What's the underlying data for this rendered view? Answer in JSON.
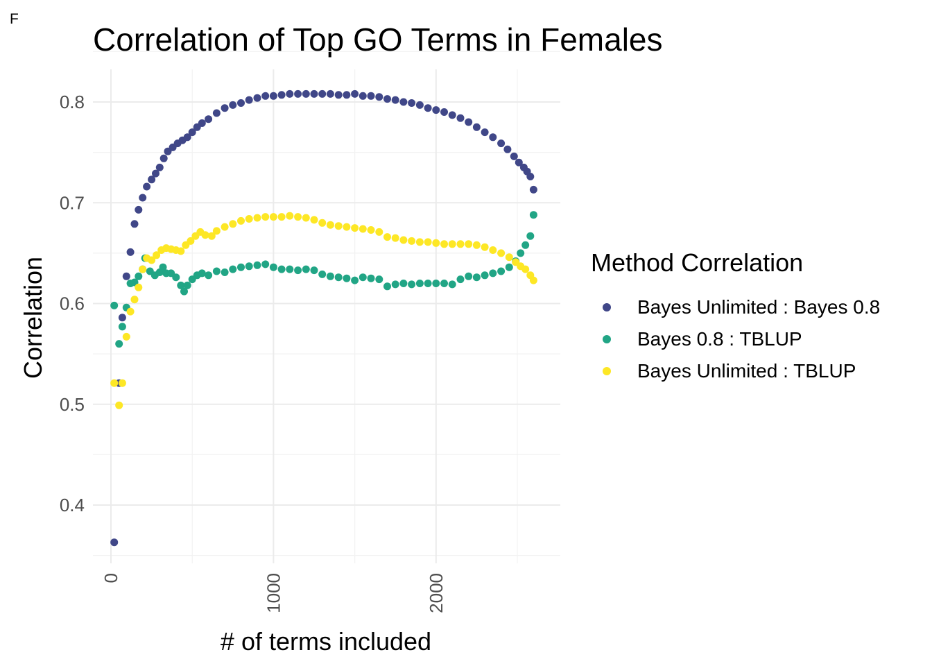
{
  "figure": {
    "panel_tag": "F"
  },
  "chart_data": {
    "type": "scatter",
    "title": "Correlation of Top GO Terms in Females",
    "xlabel": "# of terms included",
    "ylabel": "Correlation",
    "xlim": [
      -100,
      2750
    ],
    "ylim": [
      0.346,
      0.832
    ],
    "x_ticks": [
      0,
      1000,
      2000
    ],
    "x_tick_labels": [
      "0",
      "1000",
      "2000"
    ],
    "y_ticks": [
      0.4,
      0.5,
      0.6,
      0.7,
      0.8
    ],
    "y_tick_labels": [
      "0.4",
      "0.5",
      "0.6",
      "0.7",
      "0.8"
    ],
    "grid": true,
    "legend": {
      "title": "Method Correlation",
      "position": "right"
    },
    "series": [
      {
        "name": "Bayes Unlimited : Bayes 0.8",
        "color": "#404788",
        "points": [
          [
            20,
            0.363
          ],
          [
            50,
            0.521
          ],
          [
            70,
            0.586
          ],
          [
            95,
            0.627
          ],
          [
            120,
            0.651
          ],
          [
            145,
            0.679
          ],
          [
            170,
            0.693
          ],
          [
            195,
            0.705
          ],
          [
            220,
            0.716
          ],
          [
            250,
            0.723
          ],
          [
            275,
            0.729
          ],
          [
            300,
            0.735
          ],
          [
            325,
            0.744
          ],
          [
            350,
            0.751
          ],
          [
            380,
            0.755
          ],
          [
            410,
            0.759
          ],
          [
            440,
            0.762
          ],
          [
            470,
            0.765
          ],
          [
            500,
            0.77
          ],
          [
            530,
            0.775
          ],
          [
            560,
            0.779
          ],
          [
            600,
            0.783
          ],
          [
            650,
            0.789
          ],
          [
            700,
            0.794
          ],
          [
            750,
            0.797
          ],
          [
            800,
            0.799
          ],
          [
            850,
            0.802
          ],
          [
            900,
            0.804
          ],
          [
            950,
            0.806
          ],
          [
            1000,
            0.806
          ],
          [
            1050,
            0.807
          ],
          [
            1100,
            0.808
          ],
          [
            1150,
            0.808
          ],
          [
            1200,
            0.808
          ],
          [
            1250,
            0.808
          ],
          [
            1300,
            0.808
          ],
          [
            1350,
            0.808
          ],
          [
            1400,
            0.807
          ],
          [
            1450,
            0.807
          ],
          [
            1500,
            0.808
          ],
          [
            1550,
            0.806
          ],
          [
            1600,
            0.806
          ],
          [
            1650,
            0.805
          ],
          [
            1700,
            0.803
          ],
          [
            1750,
            0.802
          ],
          [
            1800,
            0.8
          ],
          [
            1850,
            0.799
          ],
          [
            1900,
            0.797
          ],
          [
            1950,
            0.794
          ],
          [
            2000,
            0.792
          ],
          [
            2050,
            0.79
          ],
          [
            2100,
            0.787
          ],
          [
            2150,
            0.784
          ],
          [
            2200,
            0.78
          ],
          [
            2250,
            0.775
          ],
          [
            2300,
            0.77
          ],
          [
            2350,
            0.765
          ],
          [
            2400,
            0.759
          ],
          [
            2440,
            0.753
          ],
          [
            2480,
            0.746
          ],
          [
            2510,
            0.74
          ],
          [
            2540,
            0.735
          ],
          [
            2560,
            0.731
          ],
          [
            2580,
            0.726
          ],
          [
            2600,
            0.713
          ]
        ]
      },
      {
        "name": "Bayes 0.8 : TBLUP",
        "color": "#21A585",
        "points": [
          [
            20,
            0.598
          ],
          [
            50,
            0.56
          ],
          [
            70,
            0.577
          ],
          [
            95,
            0.596
          ],
          [
            120,
            0.62
          ],
          [
            145,
            0.621
          ],
          [
            170,
            0.627
          ],
          [
            195,
            0.634
          ],
          [
            210,
            0.645
          ],
          [
            240,
            0.632
          ],
          [
            270,
            0.628
          ],
          [
            300,
            0.631
          ],
          [
            320,
            0.636
          ],
          [
            340,
            0.63
          ],
          [
            370,
            0.63
          ],
          [
            400,
            0.626
          ],
          [
            430,
            0.618
          ],
          [
            450,
            0.612
          ],
          [
            470,
            0.618
          ],
          [
            500,
            0.624
          ],
          [
            530,
            0.628
          ],
          [
            560,
            0.63
          ],
          [
            600,
            0.628
          ],
          [
            650,
            0.632
          ],
          [
            700,
            0.631
          ],
          [
            750,
            0.634
          ],
          [
            800,
            0.636
          ],
          [
            850,
            0.637
          ],
          [
            900,
            0.638
          ],
          [
            950,
            0.639
          ],
          [
            1000,
            0.636
          ],
          [
            1050,
            0.634
          ],
          [
            1100,
            0.634
          ],
          [
            1150,
            0.633
          ],
          [
            1200,
            0.634
          ],
          [
            1250,
            0.633
          ],
          [
            1300,
            0.629
          ],
          [
            1350,
            0.627
          ],
          [
            1400,
            0.626
          ],
          [
            1450,
            0.625
          ],
          [
            1500,
            0.623
          ],
          [
            1550,
            0.626
          ],
          [
            1600,
            0.625
          ],
          [
            1650,
            0.624
          ],
          [
            1700,
            0.617
          ],
          [
            1750,
            0.619
          ],
          [
            1800,
            0.62
          ],
          [
            1850,
            0.619
          ],
          [
            1900,
            0.62
          ],
          [
            1950,
            0.62
          ],
          [
            2000,
            0.62
          ],
          [
            2050,
            0.62
          ],
          [
            2100,
            0.619
          ],
          [
            2150,
            0.624
          ],
          [
            2200,
            0.627
          ],
          [
            2250,
            0.626
          ],
          [
            2300,
            0.628
          ],
          [
            2350,
            0.63
          ],
          [
            2400,
            0.632
          ],
          [
            2450,
            0.636
          ],
          [
            2490,
            0.642
          ],
          [
            2520,
            0.65
          ],
          [
            2550,
            0.658
          ],
          [
            2580,
            0.667
          ],
          [
            2600,
            0.688
          ]
        ]
      },
      {
        "name": "Bayes Unlimited : TBLUP",
        "color": "#FDE725",
        "points": [
          [
            20,
            0.521
          ],
          [
            50,
            0.499
          ],
          [
            70,
            0.521
          ],
          [
            95,
            0.567
          ],
          [
            120,
            0.592
          ],
          [
            145,
            0.604
          ],
          [
            170,
            0.616
          ],
          [
            195,
            0.634
          ],
          [
            220,
            0.645
          ],
          [
            250,
            0.643
          ],
          [
            280,
            0.648
          ],
          [
            310,
            0.653
          ],
          [
            340,
            0.655
          ],
          [
            370,
            0.654
          ],
          [
            400,
            0.653
          ],
          [
            430,
            0.652
          ],
          [
            460,
            0.658
          ],
          [
            490,
            0.662
          ],
          [
            520,
            0.667
          ],
          [
            550,
            0.671
          ],
          [
            580,
            0.668
          ],
          [
            620,
            0.667
          ],
          [
            650,
            0.672
          ],
          [
            700,
            0.676
          ],
          [
            750,
            0.679
          ],
          [
            800,
            0.682
          ],
          [
            850,
            0.684
          ],
          [
            900,
            0.685
          ],
          [
            950,
            0.686
          ],
          [
            1000,
            0.686
          ],
          [
            1050,
            0.686
          ],
          [
            1100,
            0.687
          ],
          [
            1150,
            0.686
          ],
          [
            1200,
            0.685
          ],
          [
            1250,
            0.683
          ],
          [
            1300,
            0.68
          ],
          [
            1350,
            0.678
          ],
          [
            1400,
            0.677
          ],
          [
            1450,
            0.676
          ],
          [
            1500,
            0.675
          ],
          [
            1550,
            0.674
          ],
          [
            1600,
            0.673
          ],
          [
            1650,
            0.671
          ],
          [
            1700,
            0.666
          ],
          [
            1750,
            0.665
          ],
          [
            1800,
            0.663
          ],
          [
            1850,
            0.662
          ],
          [
            1900,
            0.661
          ],
          [
            1950,
            0.661
          ],
          [
            2000,
            0.66
          ],
          [
            2050,
            0.659
          ],
          [
            2100,
            0.659
          ],
          [
            2150,
            0.659
          ],
          [
            2200,
            0.659
          ],
          [
            2250,
            0.658
          ],
          [
            2300,
            0.656
          ],
          [
            2350,
            0.653
          ],
          [
            2400,
            0.65
          ],
          [
            2450,
            0.646
          ],
          [
            2490,
            0.641
          ],
          [
            2520,
            0.637
          ],
          [
            2550,
            0.634
          ],
          [
            2580,
            0.628
          ],
          [
            2600,
            0.623
          ]
        ]
      }
    ]
  }
}
